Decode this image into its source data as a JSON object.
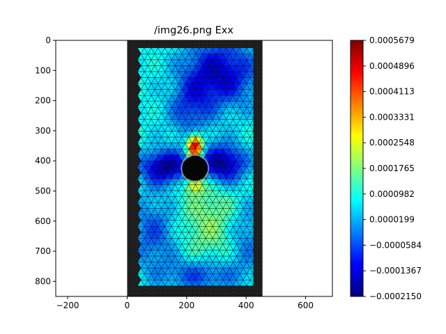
{
  "chart_data": {
    "type": "heatmap",
    "title": "/img26.png Exx",
    "xlabel": "",
    "ylabel": "",
    "xlim": [
      -240,
      690
    ],
    "ylim": [
      850,
      0
    ],
    "x_ticks": [
      -200,
      0,
      200,
      400,
      600
    ],
    "y_ticks": [
      0,
      100,
      200,
      300,
      400,
      500,
      600,
      700,
      800
    ],
    "specimen": {
      "x_range": [
        0,
        455
      ],
      "y_range": [
        0,
        850
      ]
    },
    "mesh_region": {
      "x_range": [
        35,
        425
      ],
      "y_range": [
        25,
        815
      ]
    },
    "hole": {
      "cx": 228,
      "cy": 425,
      "r": 42
    },
    "colorbar": {
      "min": -0.000215,
      "max": 0.0005679,
      "ticks": [
        "0.0005679",
        "0.0004896",
        "0.0004113",
        "0.0003331",
        "0.0002548",
        "0.0001765",
        "0.0000982",
        "0.0000199",
        "−0.0000584",
        "−0.0001367",
        "−0.0002150"
      ],
      "colormap": "jet"
    },
    "strain_field": {
      "base": 8.5e-05,
      "features": [
        {
          "x": 228,
          "y": 355,
          "value": 0.00058,
          "sx": 18,
          "sy": 28
        },
        {
          "x": 228,
          "y": 478,
          "value": 0.00029,
          "sx": 22,
          "sy": 20
        },
        {
          "x": 130,
          "y": 420,
          "value": -0.00019,
          "sx": 60,
          "sy": 40
        },
        {
          "x": 320,
          "y": 410,
          "value": -0.00021,
          "sx": 55,
          "sy": 45
        },
        {
          "x": 310,
          "y": 110,
          "value": -0.00015,
          "sx": 90,
          "sy": 80
        },
        {
          "x": 200,
          "y": 230,
          "value": -6e-05,
          "sx": 55,
          "sy": 70
        },
        {
          "x": 150,
          "y": 200,
          "value": 0.00012,
          "sx": 40,
          "sy": 90
        },
        {
          "x": 400,
          "y": 180,
          "value": 8e-05,
          "sx": 35,
          "sy": 60
        },
        {
          "x": 280,
          "y": 600,
          "value": 0.00018,
          "sx": 80,
          "sy": 110
        },
        {
          "x": 90,
          "y": 640,
          "value": -5e-05,
          "sx": 60,
          "sy": 90
        },
        {
          "x": 400,
          "y": 650,
          "value": -3e-05,
          "sx": 45,
          "sy": 90
        },
        {
          "x": 250,
          "y": 780,
          "value": -7e-05,
          "sx": 90,
          "sy": 40
        }
      ]
    }
  }
}
